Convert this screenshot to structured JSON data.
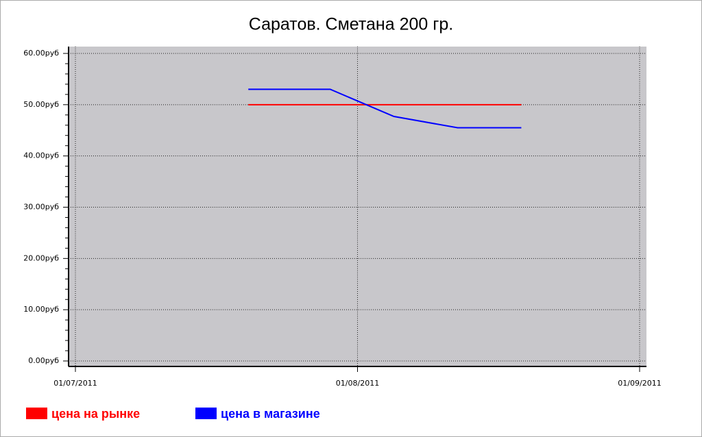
{
  "chart_data": {
    "type": "line",
    "title": "Саратов. Сметана 200 гр.",
    "x": [
      "20/07/2011",
      "29/07/2011",
      "05/08/2011",
      "12/08/2011",
      "19/08/2011"
    ],
    "series": [
      {
        "name": "цена на рынке",
        "color": "#ff0000",
        "values": [
          50,
          50,
          50,
          50,
          50
        ]
      },
      {
        "name": "цена в магазине",
        "color": "#0000ff",
        "values": [
          53,
          53,
          47.7,
          45.5,
          45.5
        ]
      }
    ],
    "xlim": [
      "01/07/2011",
      "01/09/2011"
    ],
    "xticks": [
      "01/07/2011",
      "01/08/2011",
      "01/09/2011"
    ],
    "ylim": [
      0,
      60
    ],
    "yticks": [
      {
        "value": 0,
        "label": "0.00руб"
      },
      {
        "value": 10,
        "label": "10.00руб"
      },
      {
        "value": 20,
        "label": "20.00руб"
      },
      {
        "value": 30,
        "label": "30.00руб"
      },
      {
        "value": 40,
        "label": "40.00руб"
      },
      {
        "value": 50,
        "label": "50.00руб"
      },
      {
        "value": 60,
        "label": "60.00руб"
      }
    ],
    "grid": true,
    "legend": "bottom-left"
  }
}
